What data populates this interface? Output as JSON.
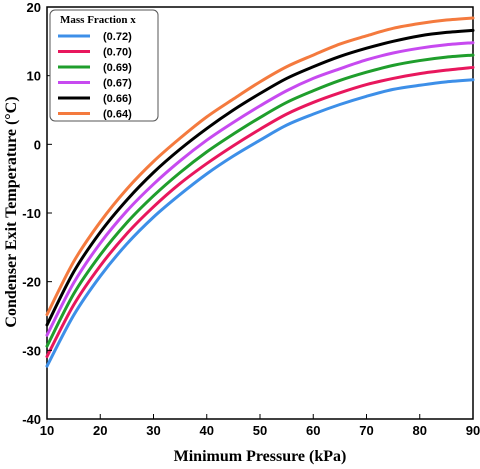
{
  "chart_data": {
    "type": "line",
    "xlabel": "Minimum Pressure (kPa)",
    "ylabel": "Condenser Exit Temperature (°C)",
    "xlim": [
      10,
      90
    ],
    "ylim": [
      -40,
      20
    ],
    "xticks": [
      10,
      20,
      30,
      40,
      50,
      60,
      70,
      80,
      90
    ],
    "yticks": [
      -40,
      -30,
      -20,
      -10,
      0,
      10,
      20
    ],
    "grid": false,
    "legend": {
      "title": "Mass Fraction x",
      "position": "top-left"
    },
    "x": [
      10,
      15,
      20,
      25,
      30,
      35,
      40,
      45,
      50,
      55,
      60,
      65,
      70,
      75,
      80,
      85,
      90
    ],
    "series": [
      {
        "name": "(0.72)",
        "color": "#3d8fe8",
        "values": [
          -32.3,
          -24.9,
          -19.2,
          -14.5,
          -10.6,
          -7.3,
          -4.3,
          -1.7,
          0.6,
          2.8,
          4.4,
          5.8,
          7.0,
          8.0,
          8.6,
          9.1,
          9.4
        ]
      },
      {
        "name": "(0.70)",
        "color": "#e8175d",
        "values": [
          -30.9,
          -23.4,
          -17.7,
          -13.0,
          -9.1,
          -5.7,
          -2.8,
          -0.2,
          2.2,
          4.4,
          6.1,
          7.5,
          8.7,
          9.6,
          10.3,
          10.8,
          11.2
        ]
      },
      {
        "name": "(0.69)",
        "color": "#1f9e2c",
        "values": [
          -29.4,
          -21.8,
          -16.1,
          -11.4,
          -7.5,
          -4.1,
          -1.1,
          1.5,
          3.9,
          6.1,
          7.8,
          9.3,
          10.5,
          11.5,
          12.2,
          12.7,
          13.0
        ]
      },
      {
        "name": "(0.67)",
        "color": "#c74af0",
        "values": [
          -27.8,
          -20.2,
          -14.4,
          -9.7,
          -5.8,
          -2.4,
          0.6,
          3.2,
          5.6,
          7.8,
          9.6,
          11.0,
          12.3,
          13.3,
          14.0,
          14.5,
          14.8
        ]
      },
      {
        "name": "(0.66)",
        "color": "#000000",
        "values": [
          -26.3,
          -18.6,
          -12.8,
          -8.1,
          -4.1,
          -0.7,
          2.3,
          5.0,
          7.4,
          9.6,
          11.3,
          12.8,
          14.0,
          15.0,
          15.8,
          16.3,
          16.6
        ]
      },
      {
        "name": "(0.64)",
        "color": "#f47a3e",
        "values": [
          -24.8,
          -17.1,
          -11.3,
          -6.5,
          -2.5,
          0.9,
          4.0,
          6.6,
          9.1,
          11.3,
          13.0,
          14.6,
          15.8,
          16.9,
          17.6,
          18.1,
          18.4
        ]
      }
    ]
  }
}
